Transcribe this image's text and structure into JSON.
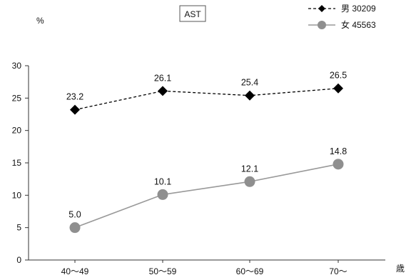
{
  "chart_data": {
    "type": "line",
    "title": "AST",
    "ylabel": "%",
    "xlabel": "歳",
    "categories": [
      "40〜49",
      "50〜59",
      "60〜69",
      "70〜"
    ],
    "ylim": [
      0,
      30
    ],
    "yticks": [
      0,
      5,
      10,
      15,
      20,
      25,
      30
    ],
    "grid": false,
    "legend_position": "top-right",
    "series": [
      {
        "name": "男 30209",
        "values": [
          23.2,
          26.1,
          25.4,
          26.5
        ],
        "labels": [
          "23.2",
          "26.1",
          "25.4",
          "26.5"
        ],
        "marker": "diamond",
        "line_style": "dashed",
        "line_color": "#000000",
        "marker_color": "#000000"
      },
      {
        "name": "女 45563",
        "values": [
          5.0,
          10.1,
          12.1,
          14.8
        ],
        "labels": [
          "5.0",
          "10.1",
          "12.1",
          "14.8"
        ],
        "marker": "circle",
        "line_style": "solid",
        "line_color": "#999999",
        "marker_color": "#8f8f8f"
      }
    ]
  }
}
